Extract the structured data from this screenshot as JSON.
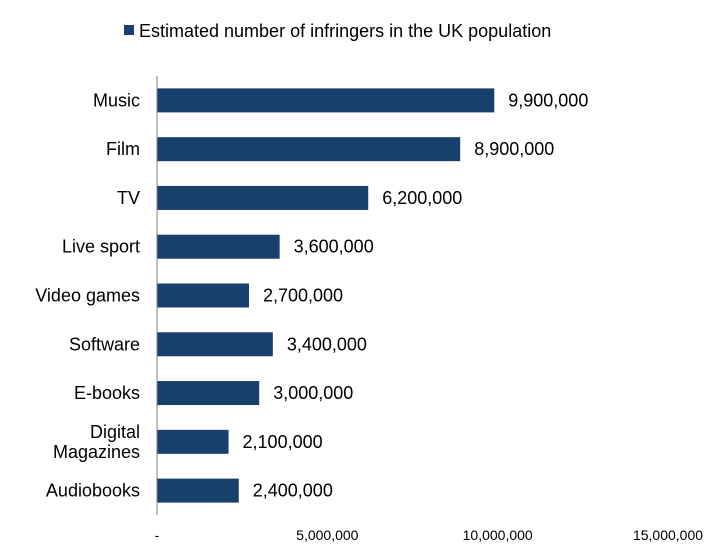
{
  "chart_data": {
    "type": "bar",
    "orientation": "horizontal",
    "categories": [
      "Music",
      "Film",
      "TV",
      "Live sport",
      "Video games",
      "Software",
      "E-books",
      "Digital Magazines",
      "Audiobooks"
    ],
    "category_lines": [
      [
        "Music"
      ],
      [
        "Film"
      ],
      [
        "TV"
      ],
      [
        "Live sport"
      ],
      [
        "Video games"
      ],
      [
        "Software"
      ],
      [
        "E-books"
      ],
      [
        "Digital",
        "Magazines"
      ],
      [
        "Audiobooks"
      ]
    ],
    "series": [
      {
        "name": "Estimated number of infringers in the UK population",
        "values": [
          9900000,
          8900000,
          6200000,
          3600000,
          2700000,
          3400000,
          3000000,
          2100000,
          2400000
        ],
        "data_labels": [
          "9,900,000",
          "8,900,000",
          "6,200,000",
          "3,600,000",
          "2,700,000",
          "3,400,000",
          "3,000,000",
          "2,100,000",
          "2,400,000"
        ]
      }
    ],
    "x_ticks": [
      0,
      5000000,
      10000000,
      15000000
    ],
    "x_tick_labels": [
      "-",
      "5,000,000",
      "10,000,000",
      "15,000,000"
    ],
    "xlim": [
      0,
      15000000
    ],
    "title": "",
    "xlabel": "",
    "ylabel": "",
    "grid": false,
    "legend": "top",
    "colors": {
      "bar": "#17406D",
      "axis": "#808080",
      "text": "#000000"
    }
  }
}
